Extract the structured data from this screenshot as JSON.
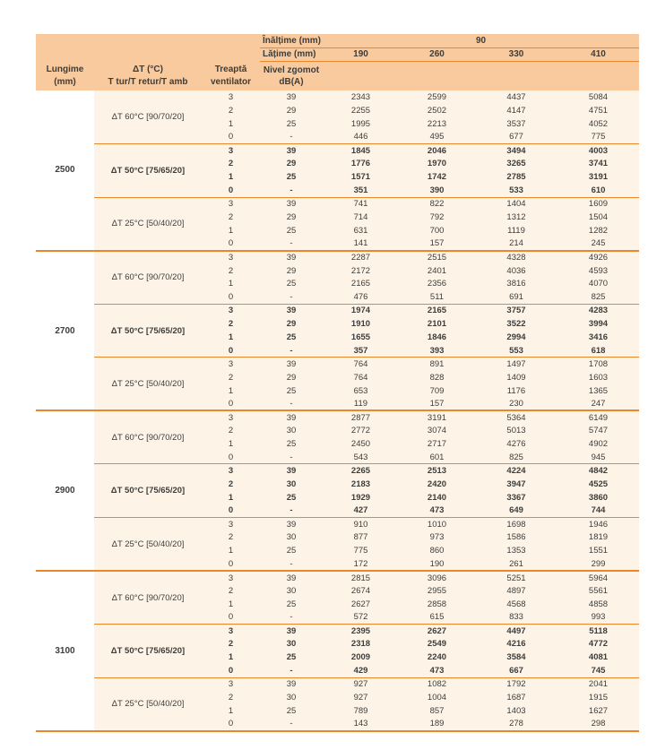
{
  "colors": {
    "header_bg": "#f9ca9d",
    "body_bg": "#fdf4e7",
    "rule_orange": "#e8872b",
    "text": "#3d3d3b"
  },
  "table": {
    "inaltime_label": "Înălțime (mm)",
    "inaltime_value": "90",
    "latime_label": "Lățime (mm)",
    "latime_values": [
      "190",
      "260",
      "330",
      "410"
    ],
    "col_headers": {
      "lungime_line1": "Lungime",
      "lungime_line2": "(mm)",
      "dt_line1": "ΔT (°C)",
      "dt_line2": "T tur/T retur/T amb",
      "treapta_line1": "Treaptă",
      "treapta_line2": "ventilator",
      "zgomot_line1": "Nivel zgomot",
      "zgomot_line2": "dB(A)"
    },
    "groups": [
      {
        "lungime": "2500",
        "subgroups": [
          {
            "dt": "ΔT 60°C [90/70/20]",
            "bold": false,
            "rows": [
              [
                "3",
                "39",
                "2343",
                "2599",
                "4437",
                "5084"
              ],
              [
                "2",
                "29",
                "2255",
                "2502",
                "4147",
                "4751"
              ],
              [
                "1",
                "25",
                "1995",
                "2213",
                "3537",
                "4052"
              ],
              [
                "0",
                "-",
                "446",
                "495",
                "677",
                "775"
              ]
            ]
          },
          {
            "dt": "ΔT 50°C [75/65/20]",
            "bold": true,
            "rows": [
              [
                "3",
                "39",
                "1845",
                "2046",
                "3494",
                "4003"
              ],
              [
                "2",
                "29",
                "1776",
                "1970",
                "3265",
                "3741"
              ],
              [
                "1",
                "25",
                "1571",
                "1742",
                "2785",
                "3191"
              ],
              [
                "0",
                "-",
                "351",
                "390",
                "533",
                "610"
              ]
            ]
          },
          {
            "dt": "ΔT 25°C [50/40/20]",
            "bold": false,
            "rows": [
              [
                "3",
                "39",
                "741",
                "822",
                "1404",
                "1609"
              ],
              [
                "2",
                "29",
                "714",
                "792",
                "1312",
                "1504"
              ],
              [
                "1",
                "25",
                "631",
                "700",
                "1119",
                "1282"
              ],
              [
                "0",
                "-",
                "141",
                "157",
                "214",
                "245"
              ]
            ]
          }
        ]
      },
      {
        "lungime": "2700",
        "subgroups": [
          {
            "dt": "ΔT 60°C [90/70/20]",
            "bold": false,
            "rows": [
              [
                "3",
                "39",
                "2287",
                "2515",
                "4328",
                "4926"
              ],
              [
                "2",
                "29",
                "2172",
                "2401",
                "4036",
                "4593"
              ],
              [
                "1",
                "25",
                "2165",
                "2356",
                "3816",
                "4070"
              ],
              [
                "0",
                "-",
                "476",
                "511",
                "691",
                "825"
              ]
            ]
          },
          {
            "dt": "ΔT 50°C [75/65/20]",
            "bold": true,
            "rows": [
              [
                "3",
                "39",
                "1974",
                "2165",
                "3757",
                "4283"
              ],
              [
                "2",
                "29",
                "1910",
                "2101",
                "3522",
                "3994"
              ],
              [
                "1",
                "25",
                "1655",
                "1846",
                "2994",
                "3416"
              ],
              [
                "0",
                "-",
                "357",
                "393",
                "553",
                "618"
              ]
            ]
          },
          {
            "dt": "ΔT 25°C [50/40/20]",
            "bold": false,
            "rows": [
              [
                "3",
                "39",
                "764",
                "891",
                "1497",
                "1708"
              ],
              [
                "2",
                "29",
                "764",
                "828",
                "1409",
                "1603"
              ],
              [
                "1",
                "25",
                "653",
                "709",
                "1176",
                "1365"
              ],
              [
                "0",
                "-",
                "119",
                "157",
                "230",
                "247"
              ]
            ]
          }
        ]
      },
      {
        "lungime": "2900",
        "subgroups": [
          {
            "dt": "ΔT 60°C [90/70/20]",
            "bold": false,
            "rows": [
              [
                "3",
                "39",
                "2877",
                "3191",
                "5364",
                "6149"
              ],
              [
                "2",
                "30",
                "2772",
                "3074",
                "5013",
                "5747"
              ],
              [
                "1",
                "25",
                "2450",
                "2717",
                "4276",
                "4902"
              ],
              [
                "0",
                "-",
                "543",
                "601",
                "825",
                "945"
              ]
            ]
          },
          {
            "dt": "ΔT 50°C [75/65/20]",
            "bold": true,
            "rows": [
              [
                "3",
                "39",
                "2265",
                "2513",
                "4224",
                "4842"
              ],
              [
                "2",
                "30",
                "2183",
                "2420",
                "3947",
                "4525"
              ],
              [
                "1",
                "25",
                "1929",
                "2140",
                "3367",
                "3860"
              ],
              [
                "0",
                "-",
                "427",
                "473",
                "649",
                "744"
              ]
            ]
          },
          {
            "dt": "ΔT 25°C [50/40/20]",
            "bold": false,
            "rows": [
              [
                "3",
                "39",
                "910",
                "1010",
                "1698",
                "1946"
              ],
              [
                "2",
                "30",
                "877",
                "973",
                "1586",
                "1819"
              ],
              [
                "1",
                "25",
                "775",
                "860",
                "1353",
                "1551"
              ],
              [
                "0",
                "-",
                "172",
                "190",
                "261",
                "299"
              ]
            ]
          }
        ]
      },
      {
        "lungime": "3100",
        "subgroups": [
          {
            "dt": "ΔT 60°C [90/70/20]",
            "bold": false,
            "rows": [
              [
                "3",
                "39",
                "2815",
                "3096",
                "5251",
                "5964"
              ],
              [
                "2",
                "30",
                "2674",
                "2955",
                "4897",
                "5561"
              ],
              [
                "1",
                "25",
                "2627",
                "2858",
                "4568",
                "4858"
              ],
              [
                "0",
                "-",
                "572",
                "615",
                "833",
                "993"
              ]
            ]
          },
          {
            "dt": "ΔT 50°C [75/65/20]",
            "bold": true,
            "rows": [
              [
                "3",
                "39",
                "2395",
                "2627",
                "4497",
                "5118"
              ],
              [
                "2",
                "30",
                "2318",
                "2549",
                "4216",
                "4772"
              ],
              [
                "1",
                "25",
                "2009",
                "2240",
                "3584",
                "4081"
              ],
              [
                "0",
                "-",
                "429",
                "473",
                "667",
                "745"
              ]
            ]
          },
          {
            "dt": "ΔT 25°C [50/40/20]",
            "bold": false,
            "rows": [
              [
                "3",
                "39",
                "927",
                "1082",
                "1792",
                "2041"
              ],
              [
                "2",
                "30",
                "927",
                "1004",
                "1687",
                "1915"
              ],
              [
                "1",
                "25",
                "789",
                "857",
                "1403",
                "1627"
              ],
              [
                "0",
                "-",
                "143",
                "189",
                "278",
                "298"
              ]
            ]
          }
        ]
      }
    ]
  }
}
